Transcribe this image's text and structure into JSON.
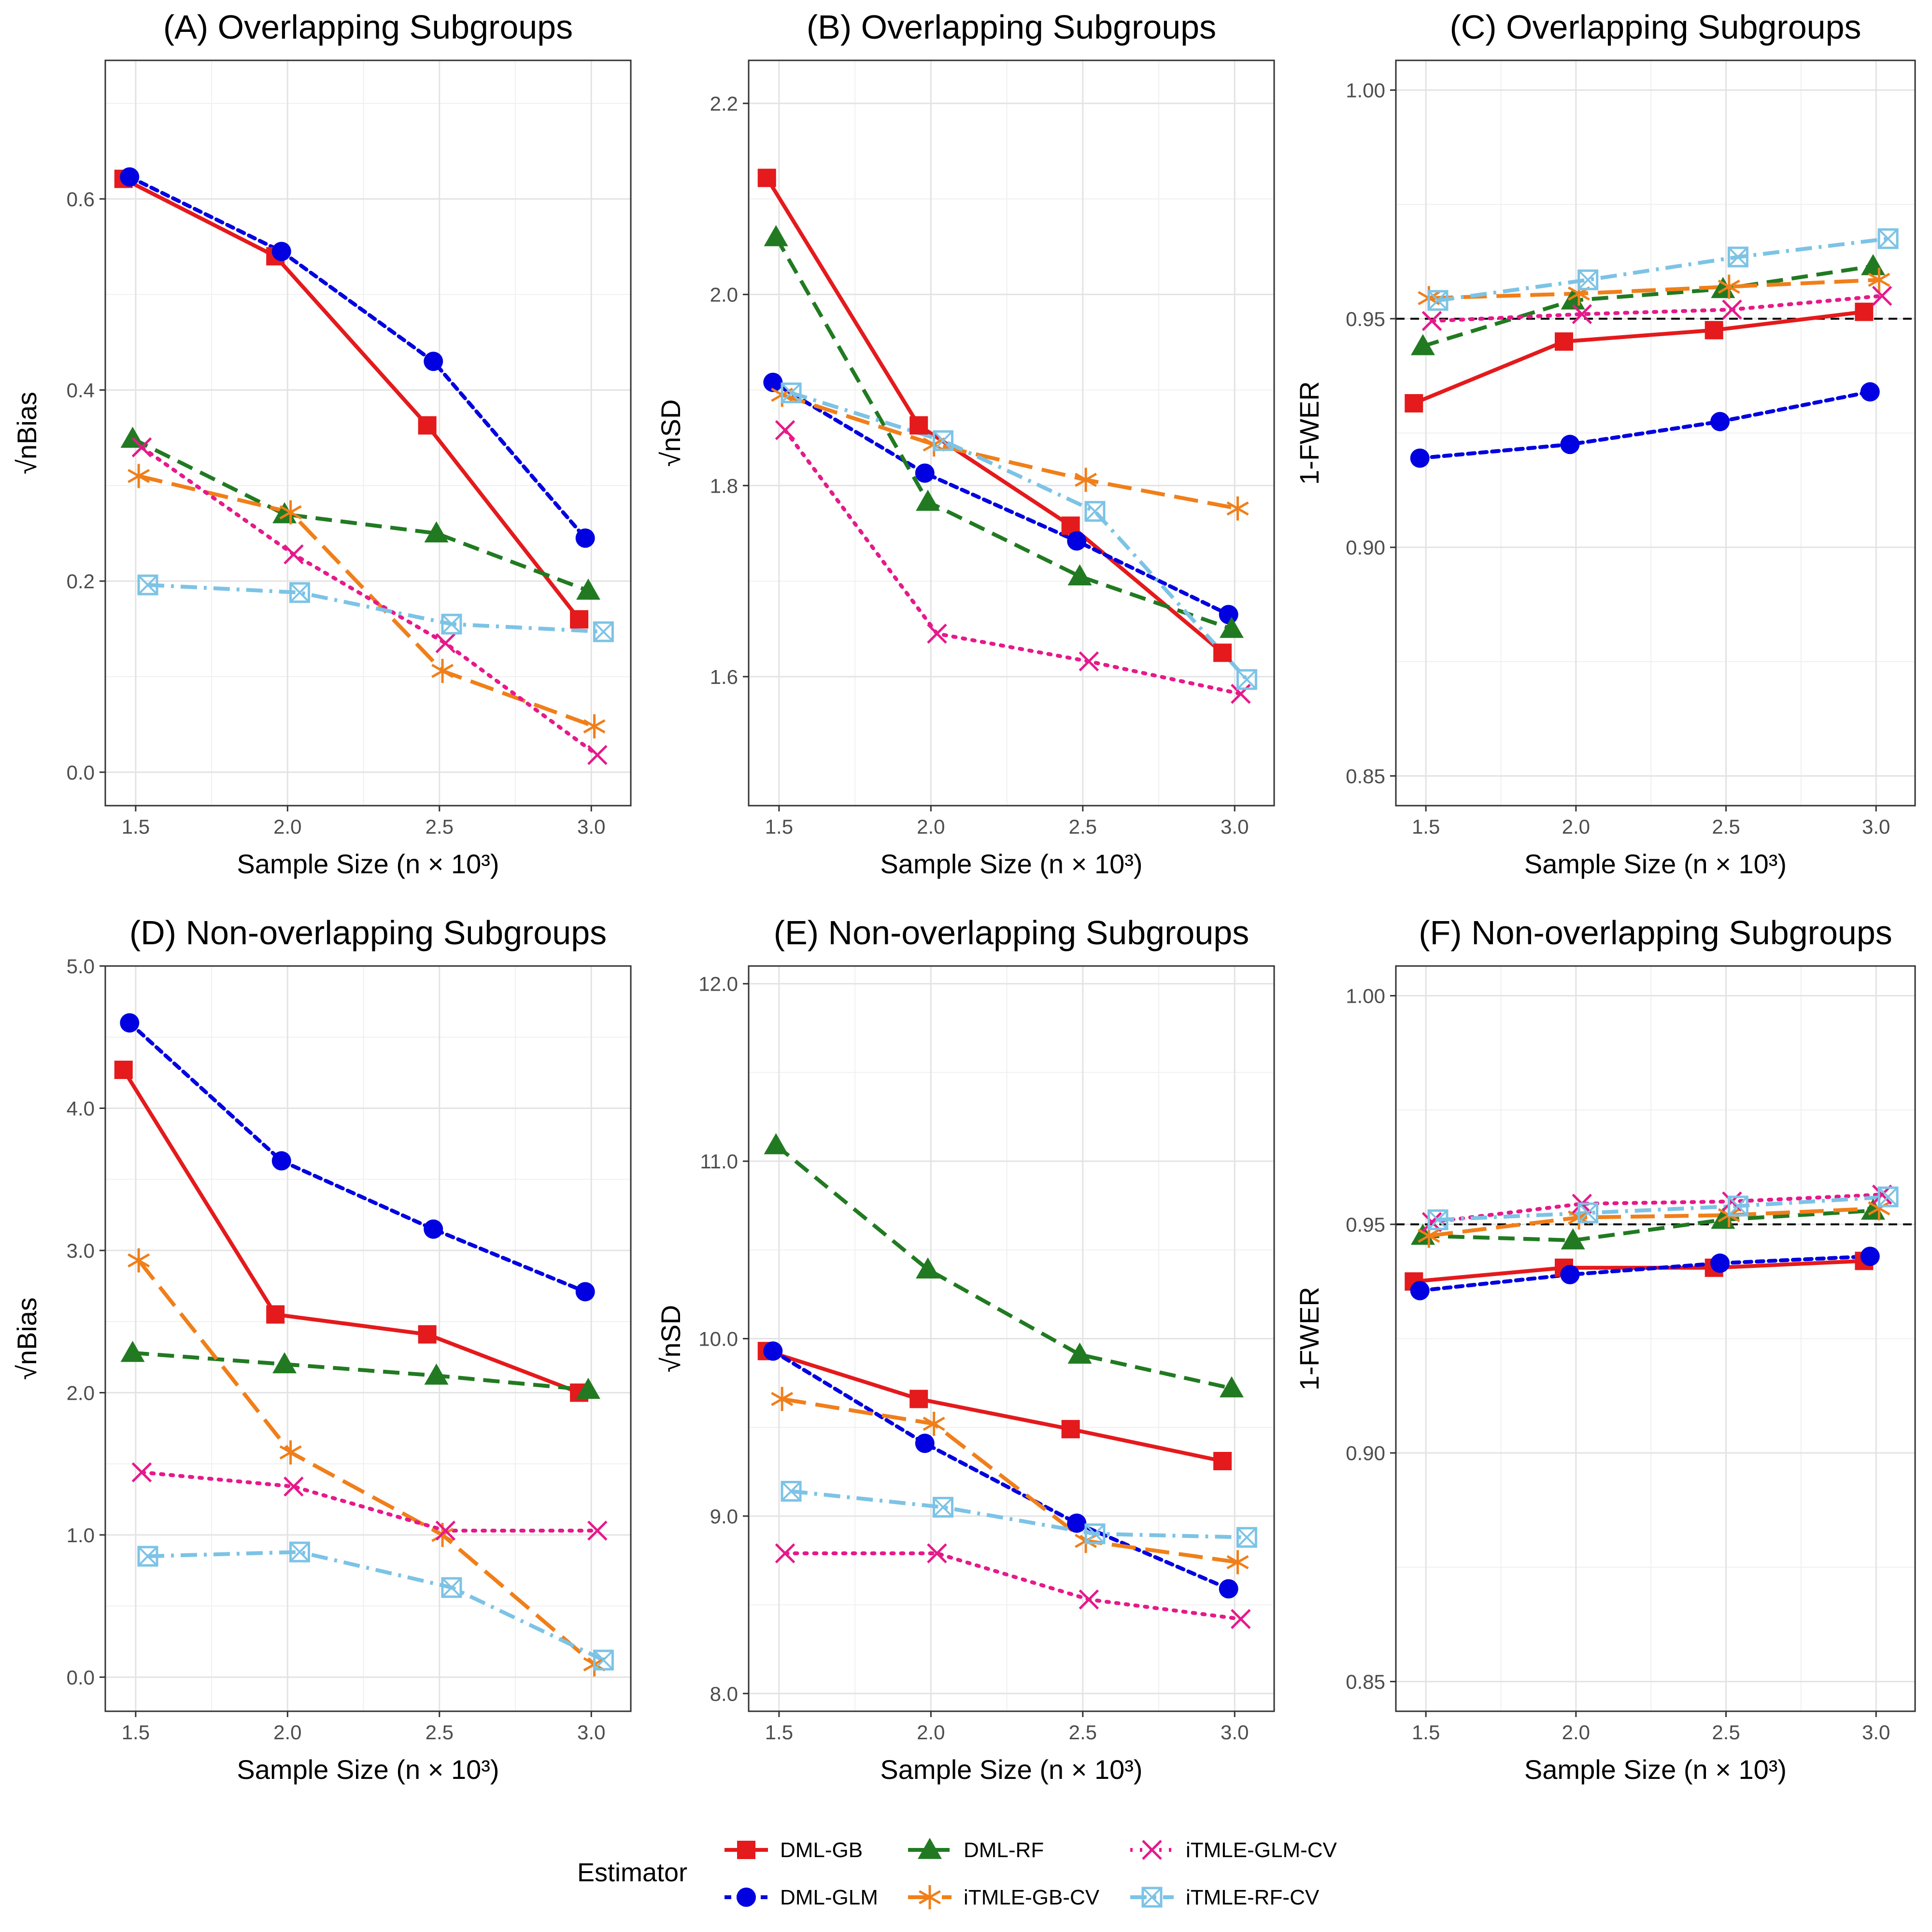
{
  "legend": {
    "title": "Estimator",
    "entries": [
      {
        "name": "DML-GB",
        "color": "#e41a1c",
        "marker": "filled-square",
        "dash": "solid"
      },
      {
        "name": "DML-GLM",
        "color": "#0000e0",
        "marker": "filled-circle",
        "dash": "dotted"
      },
      {
        "name": "DML-RF",
        "color": "#217a21",
        "marker": "filled-triangle",
        "dash": "dashed"
      },
      {
        "name": "iTMLE-GB-CV",
        "color": "#f07f1a",
        "marker": "asterisk",
        "dash": "longdash"
      },
      {
        "name": "iTMLE-GLM-CV",
        "color": "#e6198a",
        "marker": "x-cross",
        "dash": "dotted-fine"
      },
      {
        "name": "iTMLE-RF-CV",
        "color": "#7cc3e6",
        "marker": "boxed-x",
        "dash": "dashdot"
      }
    ]
  },
  "chart_data": [
    {
      "id": "A",
      "type": "line",
      "title": "(A) Overlapping Subgroups",
      "xlabel": "Sample Size (n × 10³)",
      "ylabel": "√nBias",
      "xlim": [
        1.4,
        3.13
      ],
      "ylim": [
        -0.035,
        0.745
      ],
      "xticks": [
        1.5,
        2.0,
        2.5,
        3.0
      ],
      "xtick_labels": [
        "1.5",
        "2.0",
        "2.5",
        "3.0"
      ],
      "yticks": [
        0.0,
        0.2,
        0.4,
        0.6
      ],
      "ytick_labels": [
        "0.0",
        "0.2",
        "0.4",
        "0.6"
      ],
      "hline": null,
      "series": [
        {
          "name": "DML-GB",
          "x": [
            1.46,
            1.96,
            2.46,
            2.96
          ],
          "values": [
            0.621,
            0.54,
            0.363,
            0.16
          ]
        },
        {
          "name": "DML-GLM",
          "x": [
            1.48,
            1.98,
            2.48,
            2.98
          ],
          "values": [
            0.623,
            0.545,
            0.43,
            0.245
          ]
        },
        {
          "name": "DML-RF",
          "x": [
            1.49,
            1.99,
            2.49,
            2.99
          ],
          "values": [
            0.349,
            0.27,
            0.25,
            0.19
          ]
        },
        {
          "name": "iTMLE-GB-CV",
          "x": [
            1.51,
            2.01,
            2.51,
            3.01
          ],
          "values": [
            0.31,
            0.272,
            0.106,
            0.048
          ]
        },
        {
          "name": "iTMLE-GLM-CV",
          "x": [
            1.52,
            2.02,
            2.52,
            3.02
          ],
          "values": [
            0.34,
            0.228,
            0.135,
            0.018
          ]
        },
        {
          "name": "iTMLE-RF-CV",
          "x": [
            1.54,
            2.04,
            2.54,
            3.04
          ],
          "values": [
            0.196,
            0.188,
            0.155,
            0.147
          ]
        }
      ]
    },
    {
      "id": "B",
      "type": "line",
      "title": "(B) Overlapping Subgroups",
      "xlabel": "Sample Size (n × 10³)",
      "ylabel": "√nSD",
      "xlim": [
        1.4,
        3.13
      ],
      "ylim": [
        1.465,
        2.245
      ],
      "xticks": [
        1.5,
        2.0,
        2.5,
        3.0
      ],
      "xtick_labels": [
        "1.5",
        "2.0",
        "2.5",
        "3.0"
      ],
      "yticks": [
        1.6,
        1.8,
        2.0,
        2.2
      ],
      "ytick_labels": [
        "1.6",
        "1.8",
        "2.0",
        "2.2"
      ],
      "hline": null,
      "series": [
        {
          "name": "DML-GB",
          "x": [
            1.46,
            1.96,
            2.46,
            2.96
          ],
          "values": [
            2.122,
            1.863,
            1.758,
            1.625
          ]
        },
        {
          "name": "DML-GLM",
          "x": [
            1.48,
            1.98,
            2.48,
            2.98
          ],
          "values": [
            1.908,
            1.813,
            1.742,
            1.665
          ]
        },
        {
          "name": "DML-RF",
          "x": [
            1.49,
            1.99,
            2.49,
            2.99
          ],
          "values": [
            2.06,
            1.783,
            1.705,
            1.65
          ]
        },
        {
          "name": "iTMLE-GB-CV",
          "x": [
            1.51,
            2.01,
            2.51,
            3.01
          ],
          "values": [
            1.895,
            1.843,
            1.806,
            1.776
          ]
        },
        {
          "name": "iTMLE-GLM-CV",
          "x": [
            1.52,
            2.02,
            2.52,
            3.02
          ],
          "values": [
            1.858,
            1.645,
            1.616,
            1.582
          ]
        },
        {
          "name": "iTMLE-RF-CV",
          "x": [
            1.54,
            2.04,
            2.54,
            3.04
          ],
          "values": [
            1.897,
            1.847,
            1.773,
            1.597
          ]
        }
      ]
    },
    {
      "id": "C",
      "type": "line",
      "title": "(C) Overlapping Subgroups",
      "xlabel": "Sample Size (n × 10³)",
      "ylabel": "1-FWER",
      "xlim": [
        1.4,
        3.13
      ],
      "ylim": [
        0.8435,
        1.0065
      ],
      "xticks": [
        1.5,
        2.0,
        2.5,
        3.0
      ],
      "xtick_labels": [
        "1.5",
        "2.0",
        "2.5",
        "3.0"
      ],
      "yticks": [
        0.85,
        0.9,
        0.95,
        1.0
      ],
      "ytick_labels": [
        "0.85",
        "0.90",
        "0.95",
        "1.00"
      ],
      "hline": 0.95,
      "series": [
        {
          "name": "DML-GB",
          "x": [
            1.46,
            1.96,
            2.46,
            2.96
          ],
          "values": [
            0.9315,
            0.945,
            0.9475,
            0.9515
          ]
        },
        {
          "name": "DML-GLM",
          "x": [
            1.48,
            1.98,
            2.48,
            2.98
          ],
          "values": [
            0.9195,
            0.9225,
            0.9275,
            0.934
          ]
        },
        {
          "name": "DML-RF",
          "x": [
            1.49,
            1.99,
            2.49,
            2.99
          ],
          "values": [
            0.944,
            0.954,
            0.9565,
            0.9615
          ]
        },
        {
          "name": "iTMLE-GB-CV",
          "x": [
            1.51,
            2.01,
            2.51,
            3.01
          ],
          "values": [
            0.9545,
            0.9555,
            0.957,
            0.9585
          ]
        },
        {
          "name": "iTMLE-GLM-CV",
          "x": [
            1.52,
            2.02,
            2.52,
            3.02
          ],
          "values": [
            0.9495,
            0.951,
            0.952,
            0.955
          ]
        },
        {
          "name": "iTMLE-RF-CV",
          "x": [
            1.54,
            2.04,
            2.54,
            3.04
          ],
          "values": [
            0.954,
            0.9585,
            0.9635,
            0.9675
          ]
        }
      ]
    },
    {
      "id": "D",
      "type": "line",
      "title": "(D) Non-overlapping Subgroups",
      "xlabel": "Sample Size (n × 10³)",
      "ylabel": "√nBias",
      "xlim": [
        1.4,
        3.13
      ],
      "ylim": [
        -0.24,
        5.0
      ],
      "xticks": [
        1.5,
        2.0,
        2.5,
        3.0
      ],
      "xtick_labels": [
        "1.5",
        "2.0",
        "2.5",
        "3.0"
      ],
      "yticks": [
        0.0,
        1.0,
        2.0,
        3.0,
        4.0,
        5.0
      ],
      "ytick_labels": [
        "0.0",
        "1.0",
        "2.0",
        "3.0",
        "4.0",
        "5.0"
      ],
      "hline": null,
      "series": [
        {
          "name": "DML-GB",
          "x": [
            1.46,
            1.96,
            2.46,
            2.96
          ],
          "values": [
            4.27,
            2.55,
            2.41,
            2.0
          ]
        },
        {
          "name": "DML-GLM",
          "x": [
            1.48,
            1.98,
            2.48,
            2.98
          ],
          "values": [
            4.6,
            3.63,
            3.15,
            2.71
          ]
        },
        {
          "name": "DML-RF",
          "x": [
            1.49,
            1.99,
            2.49,
            2.99
          ],
          "values": [
            2.28,
            2.2,
            2.12,
            2.02
          ]
        },
        {
          "name": "iTMLE-GB-CV",
          "x": [
            1.51,
            2.01,
            2.51,
            3.01
          ],
          "values": [
            2.93,
            1.58,
            1.0,
            0.09
          ]
        },
        {
          "name": "iTMLE-GLM-CV",
          "x": [
            1.52,
            2.02,
            2.52,
            3.02
          ],
          "values": [
            1.44,
            1.34,
            1.03,
            1.03
          ]
        },
        {
          "name": "iTMLE-RF-CV",
          "x": [
            1.54,
            2.04,
            2.54,
            3.04
          ],
          "values": [
            0.85,
            0.88,
            0.63,
            0.12
          ]
        }
      ]
    },
    {
      "id": "E",
      "type": "line",
      "title": "(E) Non-overlapping Subgroups",
      "xlabel": "Sample Size (n × 10³)",
      "ylabel": "√nSD",
      "xlim": [
        1.4,
        3.13
      ],
      "ylim": [
        7.9,
        12.1
      ],
      "xticks": [
        1.5,
        2.0,
        2.5,
        3.0
      ],
      "xtick_labels": [
        "1.5",
        "2.0",
        "2.5",
        "3.0"
      ],
      "yticks": [
        8.0,
        9.0,
        10.0,
        11.0,
        12.0
      ],
      "ytick_labels": [
        "8.0",
        "9.0",
        "10.0",
        "11.0",
        "12.0"
      ],
      "hline": null,
      "series": [
        {
          "name": "DML-GB",
          "x": [
            1.46,
            1.96,
            2.46,
            2.96
          ],
          "values": [
            9.93,
            9.66,
            9.49,
            9.31
          ]
        },
        {
          "name": "DML-GLM",
          "x": [
            1.48,
            1.98,
            2.48,
            2.98
          ],
          "values": [
            9.93,
            9.41,
            8.96,
            8.59
          ]
        },
        {
          "name": "DML-RF",
          "x": [
            1.49,
            1.99,
            2.49,
            2.99
          ],
          "values": [
            11.09,
            10.39,
            9.91,
            9.72
          ]
        },
        {
          "name": "iTMLE-GB-CV",
          "x": [
            1.51,
            2.01,
            2.51,
            3.01
          ],
          "values": [
            9.66,
            9.52,
            8.86,
            8.74
          ]
        },
        {
          "name": "iTMLE-GLM-CV",
          "x": [
            1.52,
            2.02,
            2.52,
            3.02
          ],
          "values": [
            8.79,
            8.79,
            8.53,
            8.42
          ]
        },
        {
          "name": "iTMLE-RF-CV",
          "x": [
            1.54,
            2.04,
            2.54,
            3.04
          ],
          "values": [
            9.14,
            9.05,
            8.9,
            8.88
          ]
        }
      ]
    },
    {
      "id": "F",
      "type": "line",
      "title": "(F) Non-overlapping Subgroups",
      "xlabel": "Sample Size (n × 10³)",
      "ylabel": "1-FWER",
      "xlim": [
        1.4,
        3.13
      ],
      "ylim": [
        0.8435,
        1.0065
      ],
      "xticks": [
        1.5,
        2.0,
        2.5,
        3.0
      ],
      "xtick_labels": [
        "1.5",
        "2.0",
        "2.5",
        "3.0"
      ],
      "yticks": [
        0.85,
        0.9,
        0.95,
        1.0
      ],
      "ytick_labels": [
        "0.85",
        "0.90",
        "0.95",
        "1.00"
      ],
      "hline": 0.95,
      "series": [
        {
          "name": "DML-GB",
          "x": [
            1.46,
            1.96,
            2.46,
            2.96
          ],
          "values": [
            0.9375,
            0.9405,
            0.9405,
            0.942
          ]
        },
        {
          "name": "DML-GLM",
          "x": [
            1.48,
            1.98,
            2.48,
            2.98
          ],
          "values": [
            0.9355,
            0.939,
            0.9415,
            0.943
          ]
        },
        {
          "name": "DML-RF",
          "x": [
            1.49,
            1.99,
            2.49,
            2.99
          ],
          "values": [
            0.9475,
            0.9465,
            0.951,
            0.953
          ]
        },
        {
          "name": "iTMLE-GB-CV",
          "x": [
            1.51,
            2.01,
            2.51,
            3.01
          ],
          "values": [
            0.9475,
            0.9515,
            0.952,
            0.9535
          ]
        },
        {
          "name": "iTMLE-GLM-CV",
          "x": [
            1.52,
            2.02,
            2.52,
            3.02
          ],
          "values": [
            0.9505,
            0.9545,
            0.955,
            0.9565
          ]
        },
        {
          "name": "iTMLE-RF-CV",
          "x": [
            1.54,
            2.04,
            2.54,
            3.04
          ],
          "values": [
            0.951,
            0.9525,
            0.954,
            0.956
          ]
        }
      ]
    }
  ]
}
